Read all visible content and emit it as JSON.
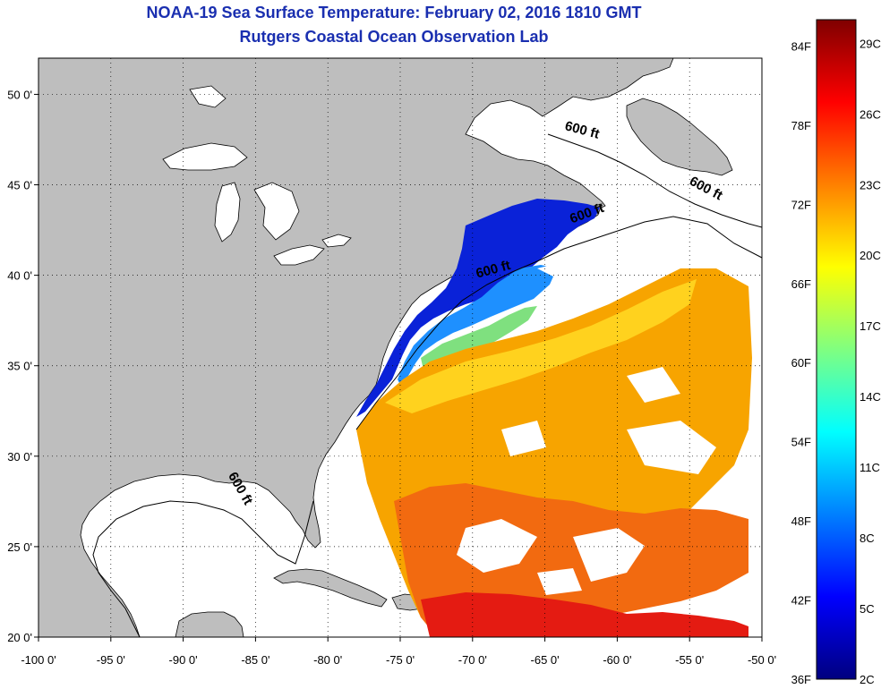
{
  "title": "NOAA-19 Sea Surface Temperature:  February 02, 2016 1810 GMT",
  "subtitle": "Rutgers Coastal Ocean Observation Lab",
  "map": {
    "lon_range": [
      -100,
      -50
    ],
    "lat_range": [
      20,
      52
    ],
    "x_ticks": [
      "-100 0'",
      "-95 0'",
      "-90 0'",
      "-85 0'",
      "-80 0'",
      "-75 0'",
      "-70 0'",
      "-65 0'",
      "-60 0'",
      "-55 0'",
      "-50 0'"
    ],
    "y_ticks": [
      "20 0'",
      "25 0'",
      "30 0'",
      "35 0'",
      "40 0'",
      "45 0'",
      "50 0'"
    ],
    "y_tick_values": [
      20,
      25,
      30,
      35,
      40,
      45,
      50
    ],
    "x_tick_values": [
      -100,
      -95,
      -90,
      -85,
      -80,
      -75,
      -70,
      -65,
      -60,
      -55,
      -50
    ],
    "grid": "dotted",
    "land_color": "#bebebe",
    "contour_label": "600 ft",
    "contour_labels": [
      {
        "text": "600 ft",
        "lon": -62.5,
        "lat": 47.8
      },
      {
        "text": "600 ft",
        "lon": -54,
        "lat": 44.6
      },
      {
        "text": "600 ft",
        "lon": -62,
        "lat": 43.2
      },
      {
        "text": "600 ft",
        "lon": -68.5,
        "lat": 40.1
      },
      {
        "text": "600 ft",
        "lon": -86.3,
        "lat": 28.1
      }
    ]
  },
  "colorbar": {
    "f_labels": [
      "36F",
      "42F",
      "48F",
      "54F",
      "60F",
      "66F",
      "72F",
      "78F",
      "84F"
    ],
    "c_labels": [
      "2C",
      "5C",
      "8C",
      "11C",
      "14C",
      "17C",
      "20C",
      "23C",
      "26C",
      "29C"
    ],
    "colors": [
      "#00007f",
      "#0000ff",
      "#0080ff",
      "#00ffff",
      "#80ff80",
      "#ffff00",
      "#ff8000",
      "#ff0000",
      "#7f0000"
    ]
  }
}
